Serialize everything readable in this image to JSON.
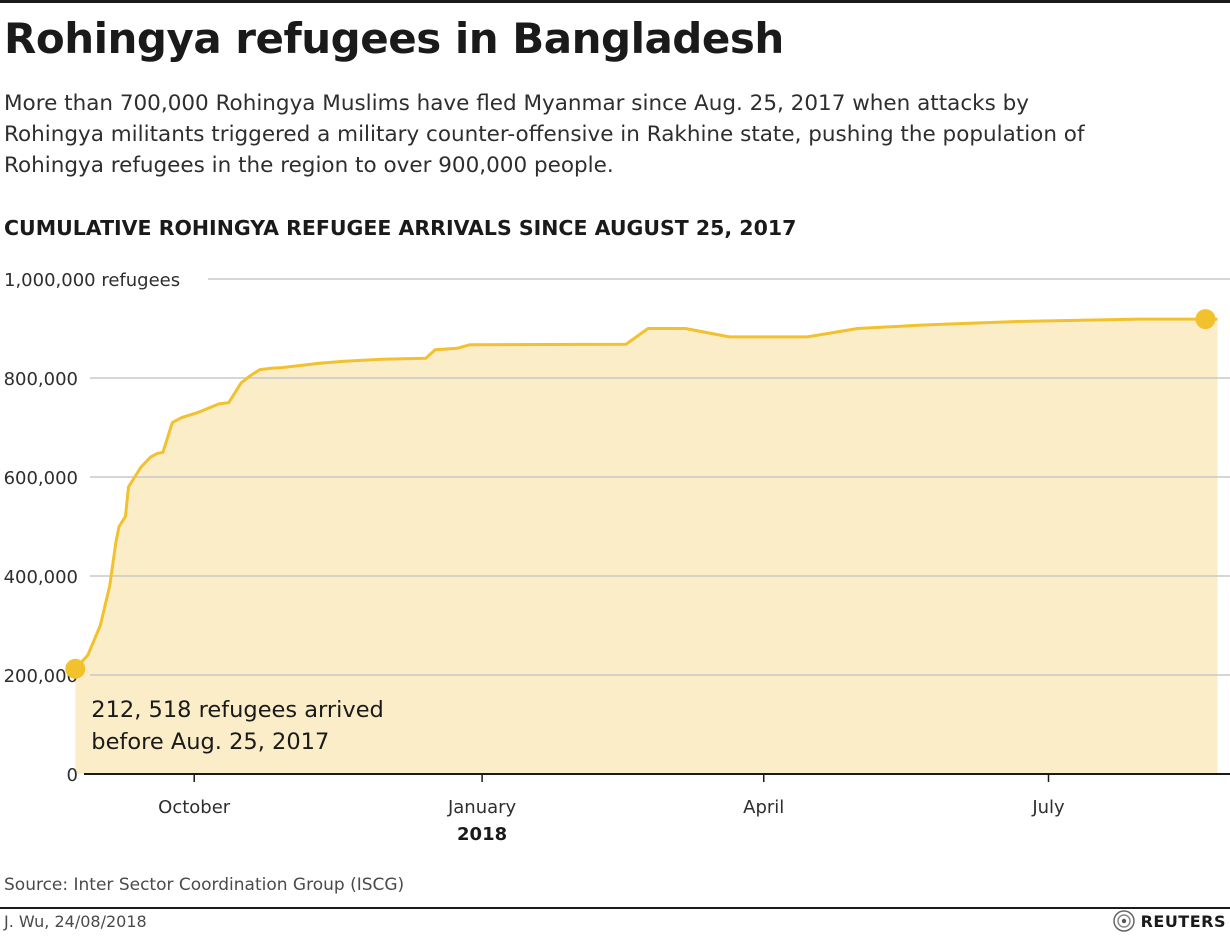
{
  "header": {
    "title": "Rohingya refugees in Bangladesh",
    "subtitle": "More than 700,000 Rohingya Muslims have fled Myanmar since Aug. 25, 2017 when attacks by Rohingya militants triggered a military counter-offensive in Rakhine state, pushing the population of Rohingya refugees in the region to over 900,000 people."
  },
  "chart_data": {
    "type": "area",
    "title": "CUMULATIVE ROHINGYA REFUGEE ARRIVALS SINCE AUGUST 25, 2017",
    "ylabel": "",
    "xlabel": "",
    "ylim": [
      0,
      1000000
    ],
    "xlim": [
      "2017-08-14",
      "2018-08-28"
    ],
    "yticks": [
      {
        "value": 1000000,
        "label": "1,000,000 refugees"
      },
      {
        "value": 800000,
        "label": "800,000"
      },
      {
        "value": 600000,
        "label": "600,000"
      },
      {
        "value": 400000,
        "label": "400,000"
      },
      {
        "value": 200000,
        "label": "200,000"
      },
      {
        "value": 0,
        "label": "0"
      }
    ],
    "xticks": [
      {
        "date": "2017-10-01",
        "label": "October",
        "sublabel": ""
      },
      {
        "date": "2018-01-01",
        "label": "January",
        "sublabel": "2018"
      },
      {
        "date": "2018-04-01",
        "label": "April",
        "sublabel": ""
      },
      {
        "date": "2018-07-01",
        "label": "July",
        "sublabel": ""
      }
    ],
    "grid": true,
    "color": "#f2c12e",
    "fill_color": "#fbedc8",
    "series": [
      {
        "name": "",
        "x": [
          "2017-08-24",
          "2017-08-28",
          "2017-09-01",
          "2017-09-04",
          "2017-09-06",
          "2017-09-07",
          "2017-09-09",
          "2017-09-10",
          "2017-09-12",
          "2017-09-14",
          "2017-09-17",
          "2017-09-19",
          "2017-09-21",
          "2017-09-24",
          "2017-09-27",
          "2017-10-02",
          "2017-10-04",
          "2017-10-09",
          "2017-10-12",
          "2017-10-16",
          "2017-10-19",
          "2017-10-22",
          "2017-10-26",
          "2017-10-29",
          "2017-11-10",
          "2017-11-18",
          "2017-11-30",
          "2017-12-14",
          "2017-12-17",
          "2017-12-24",
          "2017-12-28",
          "2018-02-16",
          "2018-02-23",
          "2018-03-07",
          "2018-03-21",
          "2018-04-15",
          "2018-05-01",
          "2018-05-22",
          "2018-06-20",
          "2018-07-30",
          "2018-08-24"
        ],
        "values": [
          212518,
          240000,
          300000,
          380000,
          470000,
          500000,
          520000,
          580000,
          600000,
          620000,
          640000,
          647000,
          650000,
          710000,
          720000,
          730000,
          735000,
          748000,
          750000,
          790000,
          805000,
          817000,
          820000,
          821000,
          830000,
          834000,
          838000,
          840000,
          857000,
          860000,
          867000,
          868000,
          900000,
          900000,
          883000,
          883000,
          900000,
          907000,
          914000,
          919000,
          919000
        ]
      }
    ],
    "annotations": [
      {
        "date": "2017-08-24",
        "value": 212518,
        "lines": [
          "212, 518 refugees arrived",
          "before Aug. 25, 2017"
        ]
      }
    ]
  },
  "footer": {
    "source": "Source: Inter Sector Coordination Group (ISCG)",
    "credit": "J. Wu,  24/08/2018",
    "logo_text": "REUTERS"
  }
}
